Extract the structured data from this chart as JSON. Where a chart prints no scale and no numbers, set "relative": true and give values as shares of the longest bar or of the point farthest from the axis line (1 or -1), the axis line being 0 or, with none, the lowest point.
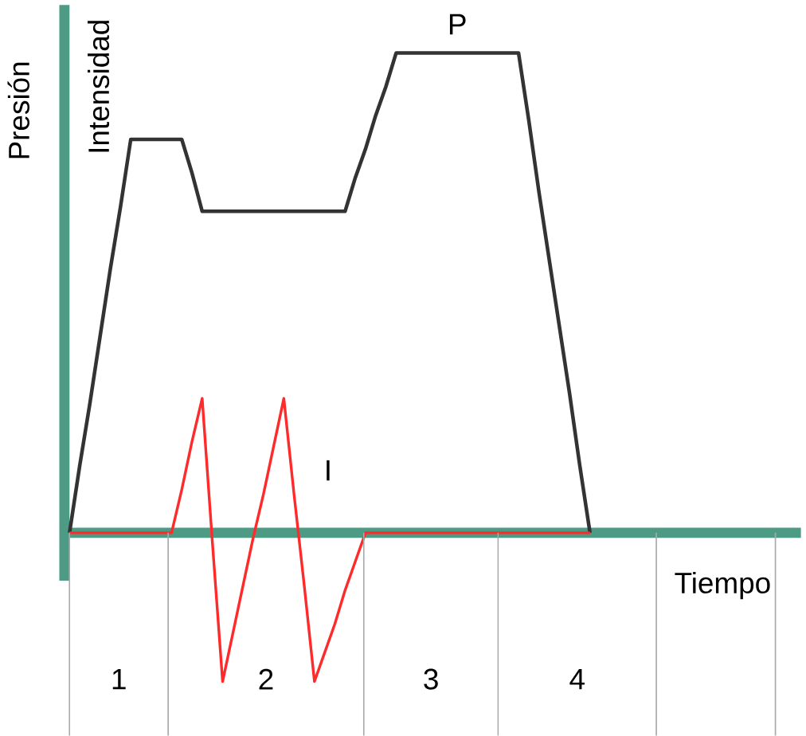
{
  "chart_data": {
    "type": "line",
    "relative": true,
    "xlabel": "Tiempo",
    "ylabel": "Presión",
    "annotations": [
      "Intensidad",
      "1",
      "2",
      "3",
      "4"
    ],
    "ref_lines": [
      {
        "axis": "y",
        "value": 0,
        "color": "#4e9b85"
      }
    ],
    "marker": "none",
    "line_style": "solid",
    "categories": [
      null,
      null,
      null,
      null,
      null,
      null,
      null,
      null,
      null,
      null,
      null,
      null,
      null,
      null,
      null,
      null,
      null,
      null,
      null,
      null,
      null,
      null,
      null,
      null,
      null,
      null,
      null,
      null,
      null,
      null,
      null,
      null,
      null,
      null,
      null,
      null,
      null,
      null,
      null,
      null,
      null,
      null,
      null,
      null,
      null,
      null,
      null,
      null,
      null,
      null,
      null,
      null
    ],
    "series": [
      {
        "name": "P",
        "color": "#333333",
        "values": [
          0,
          0.14,
          0.27,
          0.41,
          0.55,
          0.68,
          0.82,
          0.82,
          0.82,
          0.82,
          0.82,
          0.82,
          0.75,
          0.67,
          0.67,
          0.67,
          0.67,
          0.67,
          0.67,
          0.67,
          0.67,
          0.67,
          0.67,
          0.67,
          0.67,
          0.67,
          0.67,
          0.67,
          0.74,
          0.8,
          0.87,
          0.93,
          1.0,
          1.0,
          1.0,
          1.0,
          1.0,
          1.0,
          1.0,
          1.0,
          1.0,
          1.0,
          1.0,
          1.0,
          1.0,
          0.86,
          0.71,
          0.57,
          0.43,
          0.29,
          0.14,
          0
        ]
      },
      {
        "name": "I",
        "color": "#ff2a2a",
        "values": [
          0,
          0,
          0,
          0,
          0,
          0,
          0,
          0,
          0,
          0,
          0,
          0.09,
          0.19,
          0.28,
          -0.02,
          -0.31,
          -0.21,
          -0.11,
          -0.01,
          0.08,
          0.18,
          0.28,
          0.08,
          -0.11,
          -0.31,
          -0.25,
          -0.19,
          -0.12,
          -0.06,
          0,
          0,
          0,
          0,
          0,
          0,
          0,
          0,
          0,
          0,
          0,
          0,
          0,
          0,
          0,
          0,
          0,
          0,
          0,
          0,
          0,
          0,
          0
        ]
      }
    ]
  }
}
